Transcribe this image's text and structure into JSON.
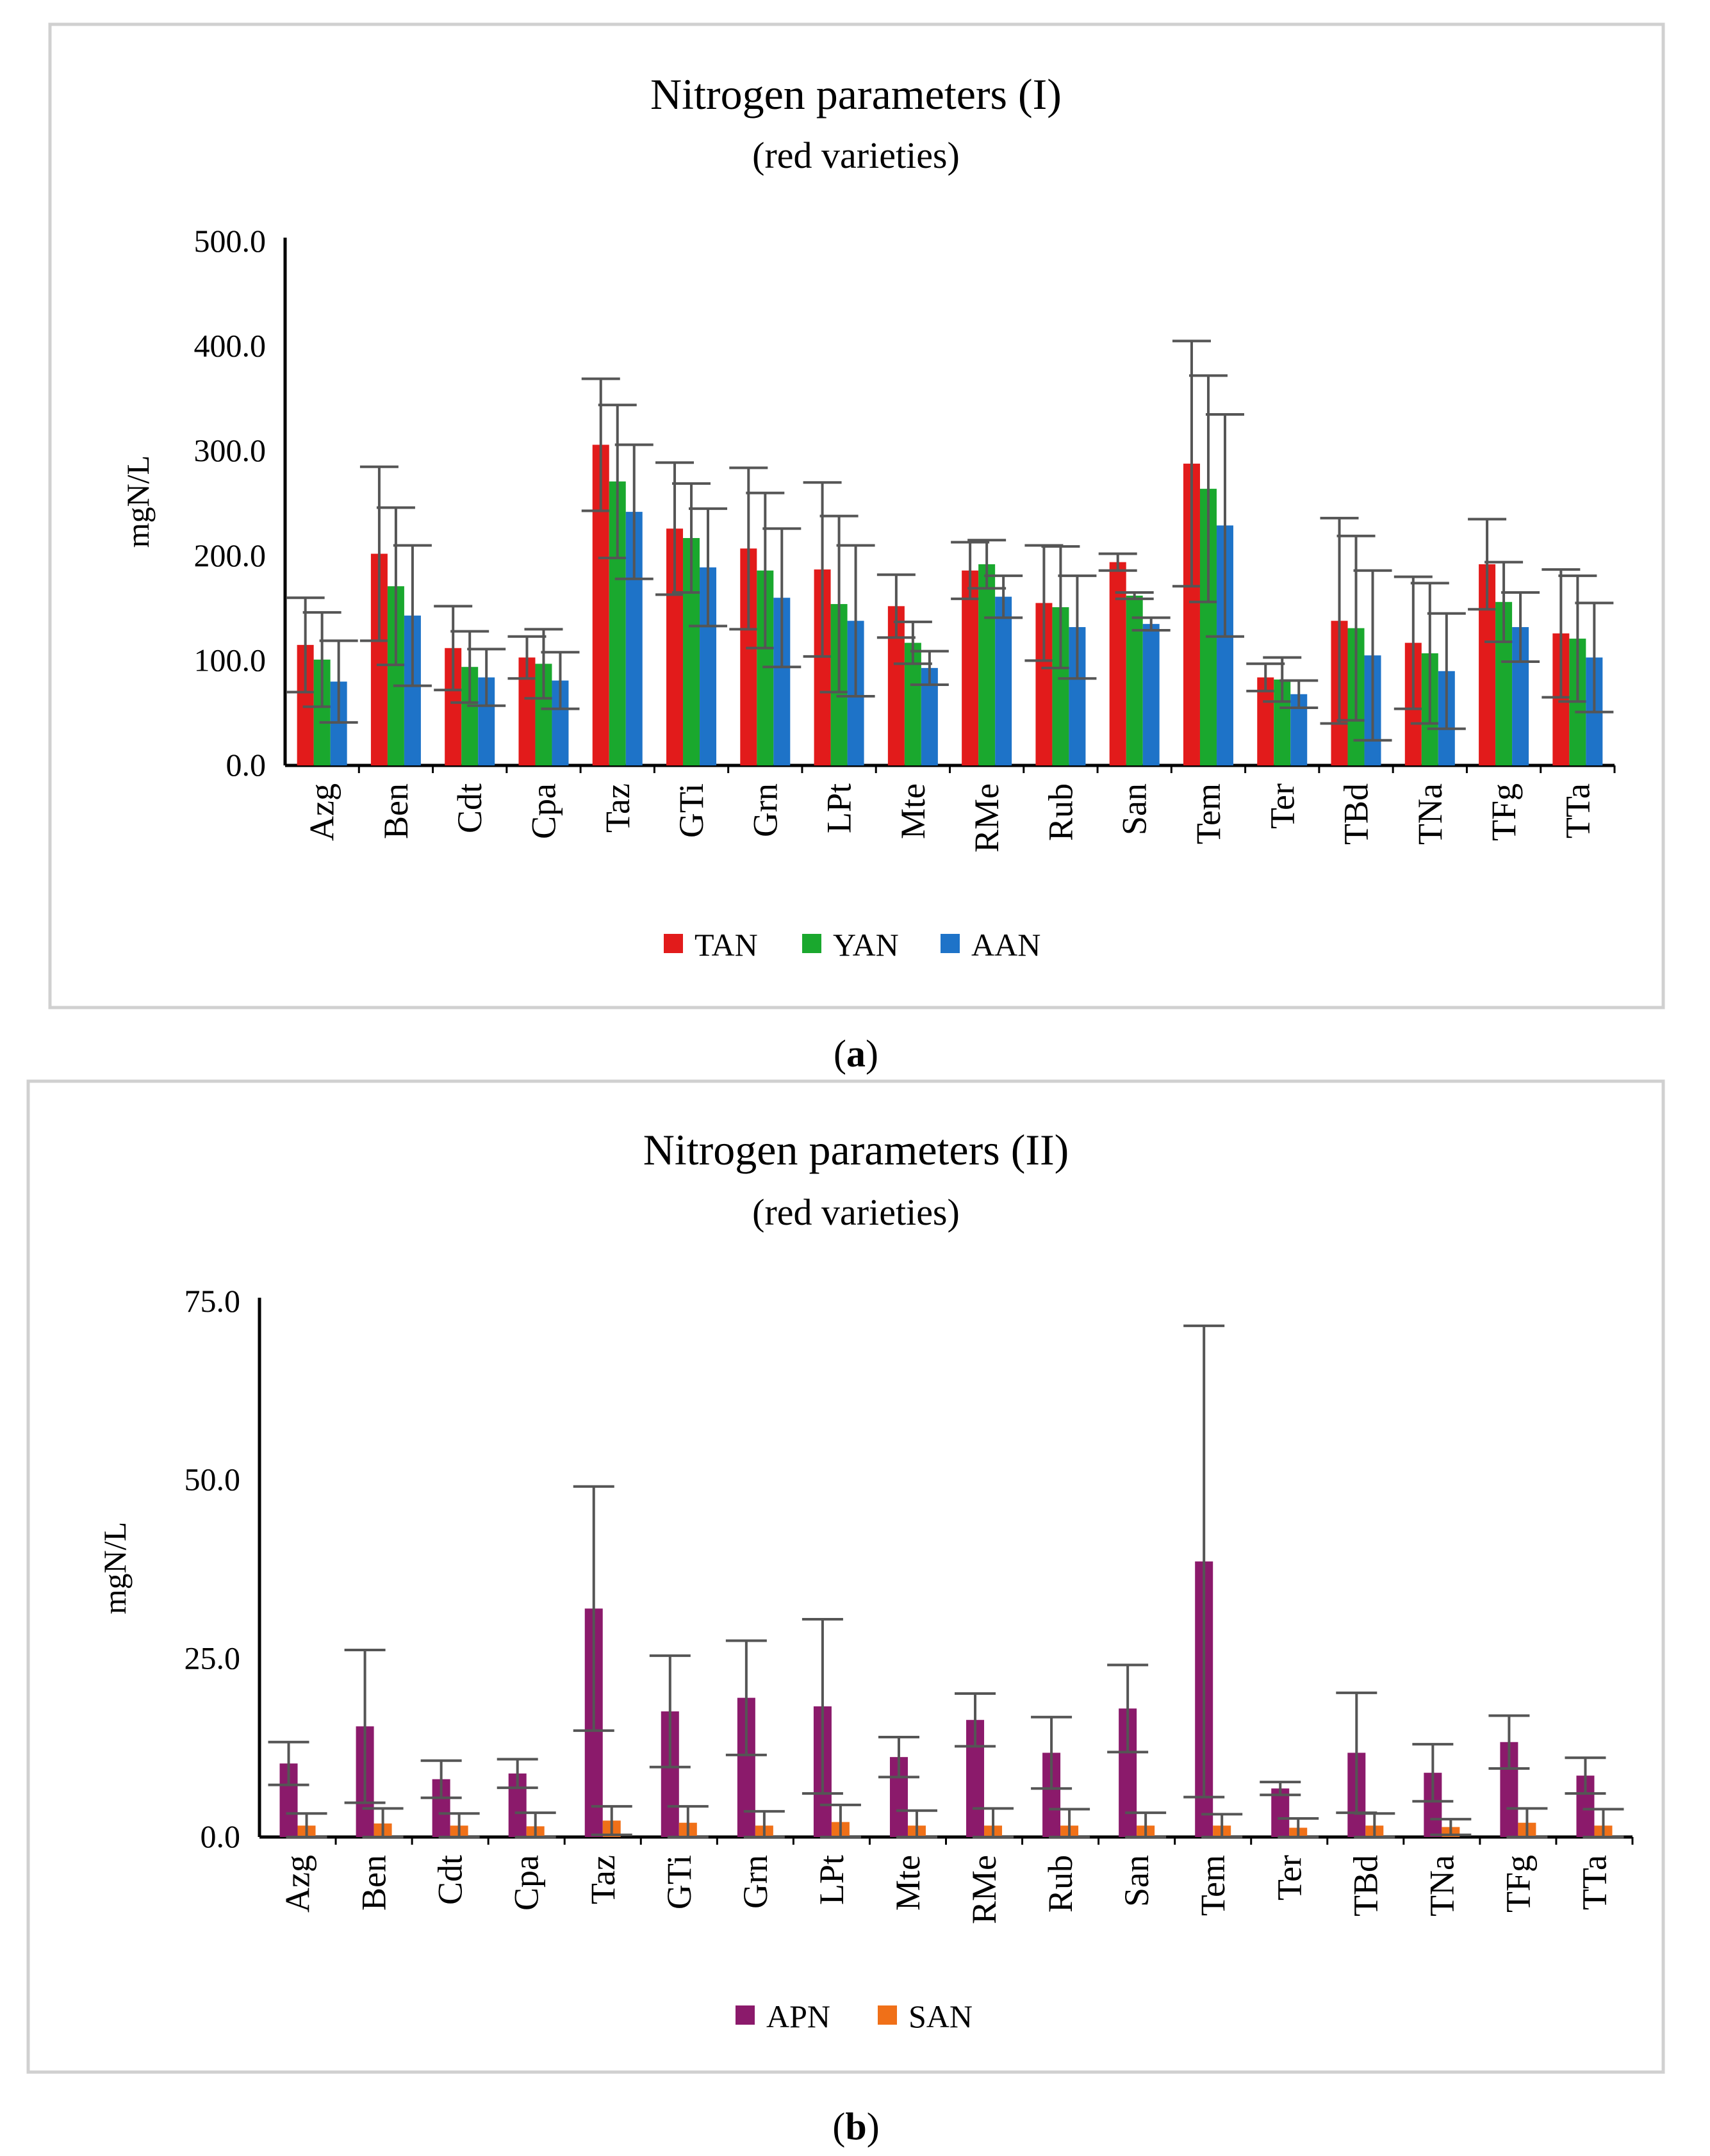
{
  "chart_data": [
    {
      "type": "bar",
      "title": "Nitrogen parameters (I)",
      "subtitle": "(red varieties)",
      "ylabel": "mgN/L",
      "xlabel": "",
      "ylim": [
        0,
        500
      ],
      "yticks": [
        "0.0",
        "100.0",
        "200.0",
        "300.0",
        "400.0",
        "500.0"
      ],
      "categories": [
        "Azg",
        "Ben",
        "Cdt",
        "Cpa",
        "Taz",
        "GTi",
        "Grn",
        "LPt",
        "Mte",
        "RMe",
        "Rub",
        "San",
        "Tem",
        "Ter",
        "TBd",
        "TNa",
        "TFg",
        "TTa"
      ],
      "legend_position": "bottom",
      "panel_label": "a",
      "series": [
        {
          "name": "TAN",
          "color": "#e21b1b",
          "values": [
            115,
            202,
            112,
            103,
            306,
            226,
            207,
            187,
            152,
            186,
            155,
            194,
            288,
            84,
            138,
            117,
            192,
            126
          ],
          "errors": [
            45,
            83,
            40,
            20,
            63,
            63,
            77,
            83,
            30,
            27,
            55,
            8,
            117,
            13,
            98,
            63,
            43,
            61
          ]
        },
        {
          "name": "YAN",
          "color": "#1aa82e",
          "values": [
            101,
            171,
            94,
            97,
            271,
            217,
            186,
            154,
            117,
            192,
            151,
            162,
            264,
            82,
            131,
            107,
            156,
            121
          ],
          "errors": [
            45,
            75,
            34,
            33,
            73,
            52,
            74,
            84,
            20,
            23,
            58,
            3,
            108,
            21,
            88,
            67,
            38,
            60
          ]
        },
        {
          "name": "AAN",
          "color": "#1e73c8",
          "values": [
            80,
            143,
            84,
            81,
            242,
            189,
            160,
            138,
            93,
            161,
            132,
            135,
            229,
            68,
            105,
            90,
            132,
            103
          ],
          "errors": [
            39,
            67,
            27,
            27,
            64,
            56,
            66,
            72,
            16,
            20,
            49,
            6,
            106,
            13,
            81,
            55,
            33,
            52
          ]
        }
      ]
    },
    {
      "type": "bar",
      "title": "Nitrogen parameters (II)",
      "subtitle": "(red varieties)",
      "ylabel": "mgN/L",
      "xlabel": "",
      "ylim": [
        0,
        75
      ],
      "yticks": [
        "0.0",
        "25.0",
        "50.0",
        "75.0"
      ],
      "categories": [
        "Azg",
        "Ben",
        "Cdt",
        "Cpa",
        "Taz",
        "GTi",
        "Grn",
        "LPt",
        "Mte",
        "RMe",
        "Rub",
        "San",
        "Tem",
        "Ter",
        "TBd",
        "TNa",
        "TFg",
        "TTa"
      ],
      "legend_position": "bottom",
      "panel_label": "b",
      "series": [
        {
          "name": "APN",
          "color": "#8b1a6b",
          "values": [
            10.3,
            15.5,
            8.1,
            8.9,
            32.0,
            17.6,
            19.5,
            18.3,
            11.2,
            16.4,
            11.8,
            18.0,
            38.6,
            6.8,
            11.8,
            9.0,
            13.3,
            8.6
          ],
          "errors": [
            3.0,
            10.7,
            2.6,
            2.0,
            17.1,
            7.8,
            8.0,
            12.2,
            2.8,
            3.7,
            5.0,
            6.1,
            33.0,
            0.9,
            8.4,
            4.0,
            3.7,
            2.5
          ]
        },
        {
          "name": "SAN",
          "color": "#f07018",
          "values": [
            1.6,
            1.9,
            1.6,
            1.5,
            2.3,
            2.0,
            1.6,
            2.1,
            1.6,
            1.6,
            1.6,
            1.6,
            1.6,
            1.3,
            1.6,
            1.4,
            2.0,
            1.6
          ],
          "errors": [
            1.7,
            2.1,
            1.7,
            1.9,
            2.0,
            2.3,
            2.0,
            2.4,
            2.1,
            2.4,
            2.3,
            1.8,
            1.6,
            1.3,
            1.7,
            1.1,
            2.0,
            2.3
          ]
        }
      ]
    }
  ]
}
